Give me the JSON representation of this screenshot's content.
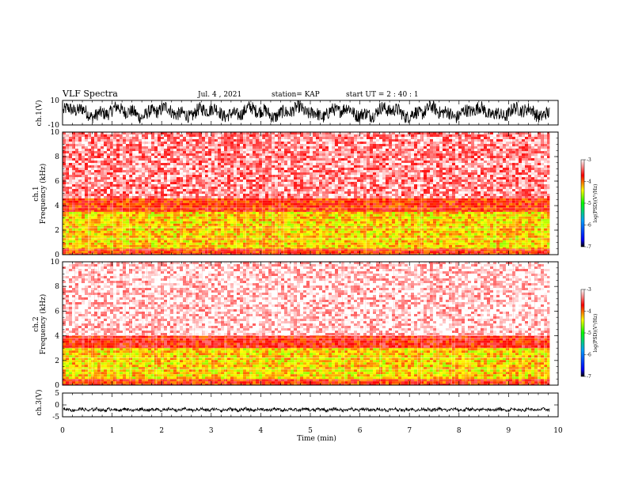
{
  "header": {
    "title": "VLF Spectra",
    "date": "Jul. 4 , 2021",
    "station": "station= KAP",
    "start": "start UT = 2 : 40 : 1"
  },
  "chart_data": [
    {
      "type": "line",
      "panel": "ch1-waveform",
      "ylabel": "ch.1(V)",
      "ylim": [
        -10,
        10
      ],
      "yticks": [
        "10",
        "-10"
      ],
      "xlim": [
        0,
        10
      ],
      "series": [
        {
          "x_end_min": 9.83,
          "mean_V": 0.5,
          "amplitude_V": 6
        }
      ]
    },
    {
      "type": "heatmap",
      "panel": "ch1-spectrogram",
      "ylabel": "ch.1\nFrequency (kHz)",
      "ylim": [
        0,
        10
      ],
      "yticks": [
        "0",
        "2",
        "4",
        "6",
        "8",
        "10"
      ],
      "xlim": [
        0,
        10
      ],
      "x_end_min": 9.83,
      "color_scale": {
        "label": "log(PSD)(V²/Hz)",
        "range": [
          -7,
          -3
        ],
        "ticks": [
          "-3",
          "-4",
          "-5",
          "-6",
          "-7"
        ]
      },
      "bands": [
        {
          "from_kHz": 0,
          "to_kHz": 0.5,
          "log_psd": -3.8
        },
        {
          "from_kHz": 0.5,
          "to_kHz": 3.5,
          "log_psd": -4.3
        },
        {
          "from_kHz": 3.5,
          "to_kHz": 4.6,
          "log_psd": -3.8
        },
        {
          "from_kHz": 4.6,
          "to_kHz": 10,
          "log_psd": -3.3
        }
      ]
    },
    {
      "type": "heatmap",
      "panel": "ch2-spectrogram",
      "ylabel": "ch.2\nFrequency (kHz)",
      "ylim": [
        0,
        10
      ],
      "yticks": [
        "0",
        "2",
        "4",
        "6",
        "8",
        "10"
      ],
      "xlim": [
        0,
        10
      ],
      "x_end_min": 9.83,
      "color_scale": {
        "label": "log(PSD)(V²/Hz)",
        "range": [
          -7,
          -3
        ],
        "ticks": [
          "-3",
          "-4",
          "-5",
          "-6",
          "-7"
        ]
      },
      "bands": [
        {
          "from_kHz": 0,
          "to_kHz": 0.5,
          "log_psd": -3.8
        },
        {
          "from_kHz": 0.5,
          "to_kHz": 3.0,
          "log_psd": -4.3
        },
        {
          "from_kHz": 3.0,
          "to_kHz": 4.0,
          "log_psd": -3.7
        },
        {
          "from_kHz": 4.0,
          "to_kHz": 10,
          "log_psd": -3.1
        }
      ]
    },
    {
      "type": "line",
      "panel": "ch3-waveform",
      "ylabel": "ch.3(V)",
      "ylim": [
        -5,
        5
      ],
      "yticks": [
        "5",
        "0",
        "-5"
      ],
      "xlim": [
        0,
        10
      ],
      "xlabel": "Time (min)",
      "xticks": [
        "0",
        "1",
        "2",
        "3",
        "4",
        "5",
        "6",
        "7",
        "8",
        "9",
        "10"
      ],
      "series": [
        {
          "x_end_min": 9.83,
          "mean_V": -2.0,
          "amplitude_V": 0.6
        }
      ]
    }
  ]
}
